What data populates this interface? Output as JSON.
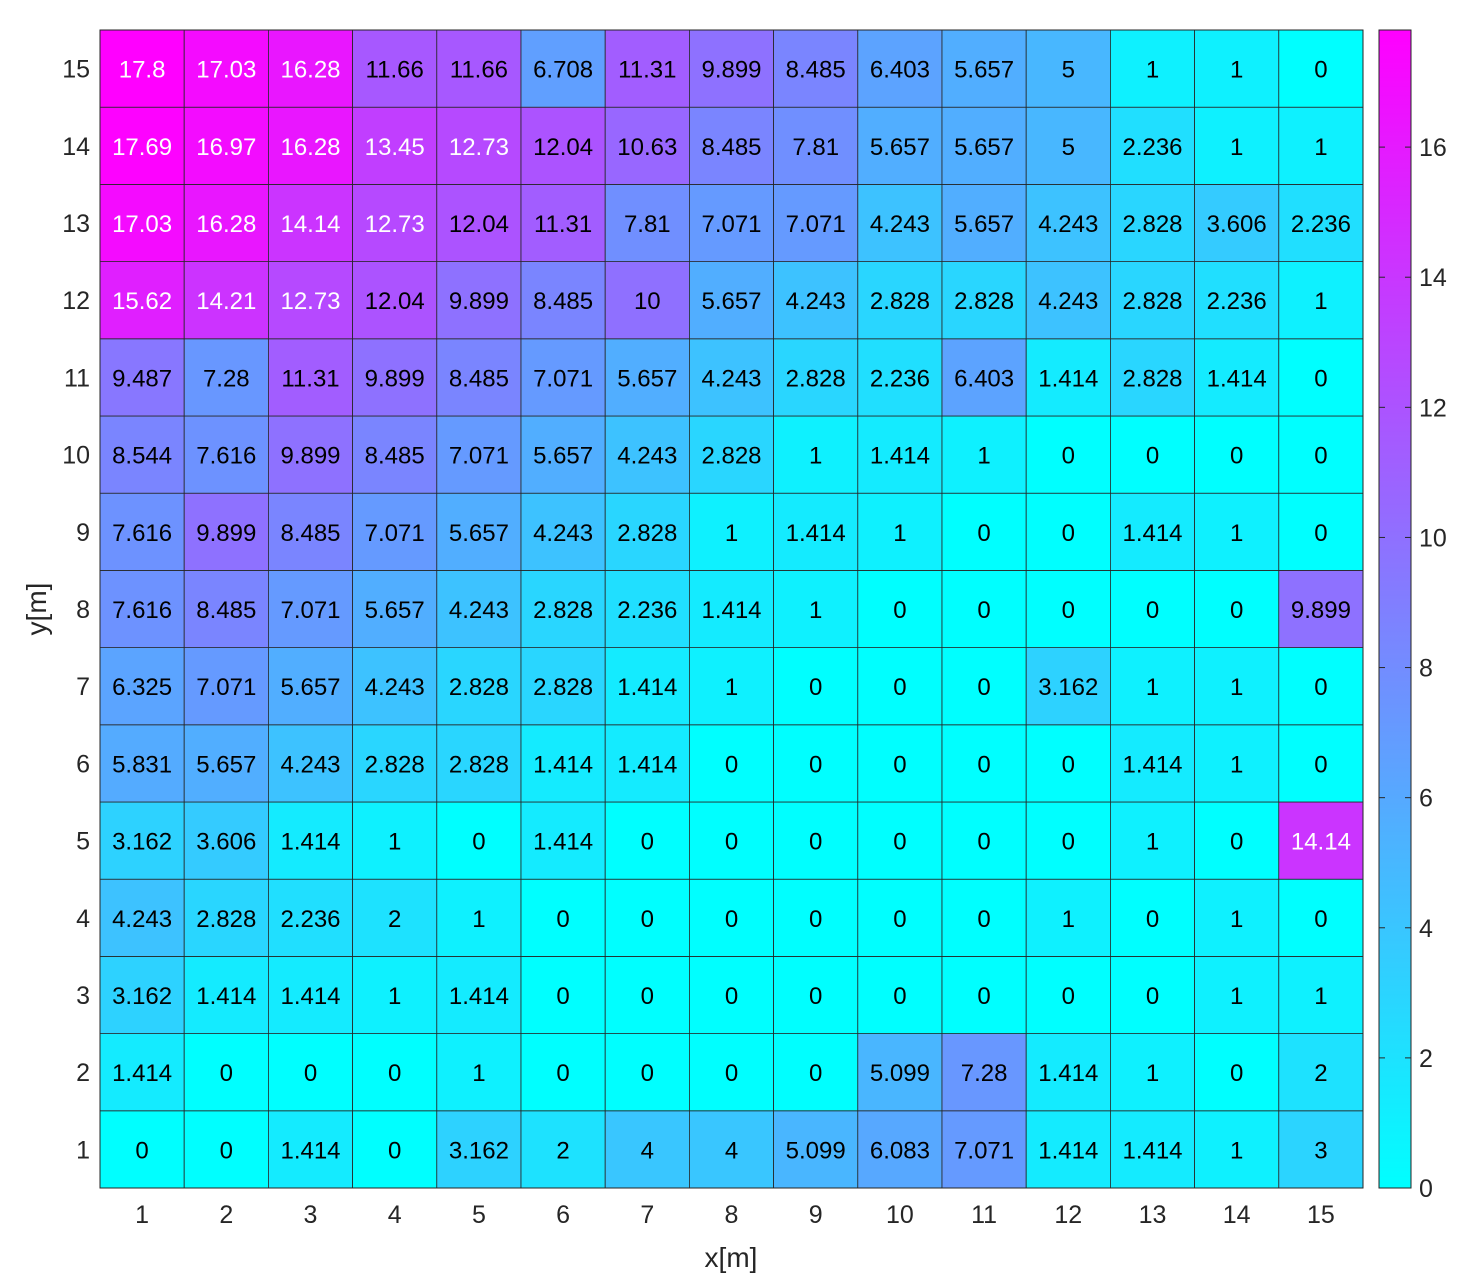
{
  "chart_data": {
    "type": "heatmap",
    "xlabel": "x[m]",
    "ylabel": "y[m]",
    "x": [
      1,
      2,
      3,
      4,
      5,
      6,
      7,
      8,
      9,
      10,
      11,
      12,
      13,
      14,
      15
    ],
    "y": [
      1,
      2,
      3,
      4,
      5,
      6,
      7,
      8,
      9,
      10,
      11,
      12,
      13,
      14,
      15
    ],
    "value_labels": [
      [
        "0",
        "0",
        "1.414",
        "0",
        "3.162",
        "2",
        "4",
        "4",
        "5.099",
        "6.083",
        "7.071",
        "1.414",
        "1.414",
        "1",
        "3"
      ],
      [
        "1.414",
        "0",
        "0",
        "0",
        "1",
        "0",
        "0",
        "0",
        "0",
        "5.099",
        "7.28",
        "1.414",
        "1",
        "0",
        "2"
      ],
      [
        "3.162",
        "1.414",
        "1.414",
        "1",
        "1.414",
        "0",
        "0",
        "0",
        "0",
        "0",
        "0",
        "0",
        "0",
        "1",
        "1"
      ],
      [
        "4.243",
        "2.828",
        "2.236",
        "2",
        "1",
        "0",
        "0",
        "0",
        "0",
        "0",
        "0",
        "1",
        "0",
        "1",
        "0"
      ],
      [
        "3.162",
        "3.606",
        "1.414",
        "1",
        "0",
        "1.414",
        "0",
        "0",
        "0",
        "0",
        "0",
        "0",
        "1",
        "0",
        "14.14"
      ],
      [
        "5.831",
        "5.657",
        "4.243",
        "2.828",
        "2.828",
        "1.414",
        "1.414",
        "0",
        "0",
        "0",
        "0",
        "0",
        "1.414",
        "1",
        "0"
      ],
      [
        "6.325",
        "7.071",
        "5.657",
        "4.243",
        "2.828",
        "2.828",
        "1.414",
        "1",
        "0",
        "0",
        "0",
        "3.162",
        "1",
        "1",
        "0"
      ],
      [
        "7.616",
        "8.485",
        "7.071",
        "5.657",
        "4.243",
        "2.828",
        "2.236",
        "1.414",
        "1",
        "0",
        "0",
        "0",
        "0",
        "0",
        "9.899"
      ],
      [
        "7.616",
        "9.899",
        "8.485",
        "7.071",
        "5.657",
        "4.243",
        "2.828",
        "1",
        "1.414",
        "1",
        "0",
        "0",
        "1.414",
        "1",
        "0"
      ],
      [
        "8.544",
        "7.616",
        "9.899",
        "8.485",
        "7.071",
        "5.657",
        "4.243",
        "2.828",
        "1",
        "1.414",
        "1",
        "0",
        "0",
        "0",
        "0"
      ],
      [
        "9.487",
        "7.28",
        "11.31",
        "9.899",
        "8.485",
        "7.071",
        "5.657",
        "4.243",
        "2.828",
        "2.236",
        "6.403",
        "1.414",
        "2.828",
        "1.414",
        "0"
      ],
      [
        "15.62",
        "14.21",
        "12.73",
        "12.04",
        "9.899",
        "8.485",
        "10",
        "5.657",
        "4.243",
        "2.828",
        "2.828",
        "4.243",
        "2.828",
        "2.236",
        "1"
      ],
      [
        "17.03",
        "16.28",
        "14.14",
        "12.73",
        "12.04",
        "11.31",
        "7.81",
        "7.071",
        "7.071",
        "4.243",
        "5.657",
        "4.243",
        "2.828",
        "3.606",
        "2.236"
      ],
      [
        "17.69",
        "16.97",
        "16.28",
        "13.45",
        "12.73",
        "12.04",
        "10.63",
        "8.485",
        "7.81",
        "5.657",
        "5.657",
        "5",
        "2.236",
        "1",
        "1"
      ],
      [
        "17.8",
        "17.03",
        "16.28",
        "11.66",
        "11.66",
        "6.708",
        "11.31",
        "9.899",
        "8.485",
        "6.403",
        "5.657",
        "5",
        "1",
        "1",
        "0"
      ]
    ],
    "colorbar": {
      "colormap": "cool",
      "color_low": "#00ffff",
      "color_high": "#ff00ff",
      "range": [
        0,
        17.8
      ],
      "ticks": [
        "0",
        "2",
        "4",
        "6",
        "8",
        "10",
        "12",
        "14",
        "16"
      ]
    },
    "text_color_dark": "#000000",
    "text_color_light": "#ffffff",
    "text_light_threshold": 12.5,
    "grid": true
  }
}
